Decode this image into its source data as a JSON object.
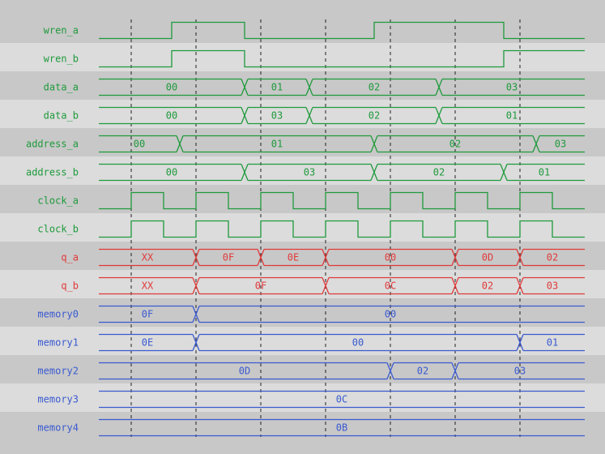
{
  "colors": {
    "input": "#1f9a3c",
    "output": "#e03a3a",
    "memory": "#3a5ad0",
    "row_dark": "#c8c8c8",
    "row_light": "#dcdcdc",
    "grid": "#202020"
  },
  "time": {
    "end": 15,
    "gridlines": [
      1,
      3,
      5,
      7,
      9,
      11,
      13
    ]
  },
  "signals": [
    {
      "name": "wren_a",
      "kind": "bit",
      "group": "input",
      "edges": [
        [
          0,
          0
        ],
        [
          2.25,
          1
        ],
        [
          4.5,
          0
        ],
        [
          8.5,
          1
        ],
        [
          12.5,
          0
        ]
      ]
    },
    {
      "name": "wren_b",
      "kind": "bit",
      "group": "input",
      "edges": [
        [
          0,
          0
        ],
        [
          2.25,
          1
        ],
        [
          4.5,
          0
        ],
        [
          12.5,
          1
        ]
      ]
    },
    {
      "name": "data_a",
      "kind": "bus",
      "group": "input",
      "segments": [
        [
          0,
          "00"
        ],
        [
          4.5,
          "01"
        ],
        [
          6.5,
          "02"
        ],
        [
          10.5,
          "03"
        ]
      ]
    },
    {
      "name": "data_b",
      "kind": "bus",
      "group": "input",
      "segments": [
        [
          0,
          "00"
        ],
        [
          4.5,
          "03"
        ],
        [
          6.5,
          "02"
        ],
        [
          10.5,
          "01"
        ]
      ]
    },
    {
      "name": "address_a",
      "kind": "bus",
      "group": "input",
      "segments": [
        [
          0,
          "00"
        ],
        [
          2.5,
          "01"
        ],
        [
          8.5,
          "02"
        ],
        [
          13.5,
          "03"
        ]
      ]
    },
    {
      "name": "address_b",
      "kind": "bus",
      "group": "input",
      "segments": [
        [
          0,
          "00"
        ],
        [
          4.5,
          "03"
        ],
        [
          8.5,
          "02"
        ],
        [
          12.5,
          "01"
        ]
      ]
    },
    {
      "name": "clock_a",
      "kind": "clock",
      "group": "input",
      "first_rise": 1,
      "period": 2
    },
    {
      "name": "clock_b",
      "kind": "clock",
      "group": "input",
      "first_rise": 1,
      "period": 2
    },
    {
      "name": "q_a",
      "kind": "bus",
      "group": "output",
      "segments": [
        [
          0,
          "XX"
        ],
        [
          3,
          "0F"
        ],
        [
          5,
          "0E"
        ],
        [
          7,
          "00"
        ],
        [
          11,
          "0D"
        ],
        [
          13,
          "02"
        ]
      ]
    },
    {
      "name": "q_b",
      "kind": "bus",
      "group": "output",
      "segments": [
        [
          0,
          "XX"
        ],
        [
          3,
          "0F"
        ],
        [
          7,
          "0C"
        ],
        [
          11,
          "02"
        ],
        [
          13,
          "03"
        ]
      ]
    },
    {
      "name": "memory0",
      "kind": "bus",
      "group": "memory",
      "segments": [
        [
          0,
          "0F"
        ],
        [
          3,
          "00"
        ]
      ]
    },
    {
      "name": "memory1",
      "kind": "bus",
      "group": "memory",
      "segments": [
        [
          0,
          "0E"
        ],
        [
          3,
          "00"
        ],
        [
          13,
          "01"
        ]
      ]
    },
    {
      "name": "memory2",
      "kind": "bus",
      "group": "memory",
      "segments": [
        [
          0,
          "0D"
        ],
        [
          9,
          "02"
        ],
        [
          11,
          "03"
        ]
      ]
    },
    {
      "name": "memory3",
      "kind": "bus",
      "group": "memory",
      "segments": [
        [
          0,
          "0C"
        ]
      ]
    },
    {
      "name": "memory4",
      "kind": "bus",
      "group": "memory",
      "segments": [
        [
          0,
          "0B"
        ]
      ]
    }
  ]
}
